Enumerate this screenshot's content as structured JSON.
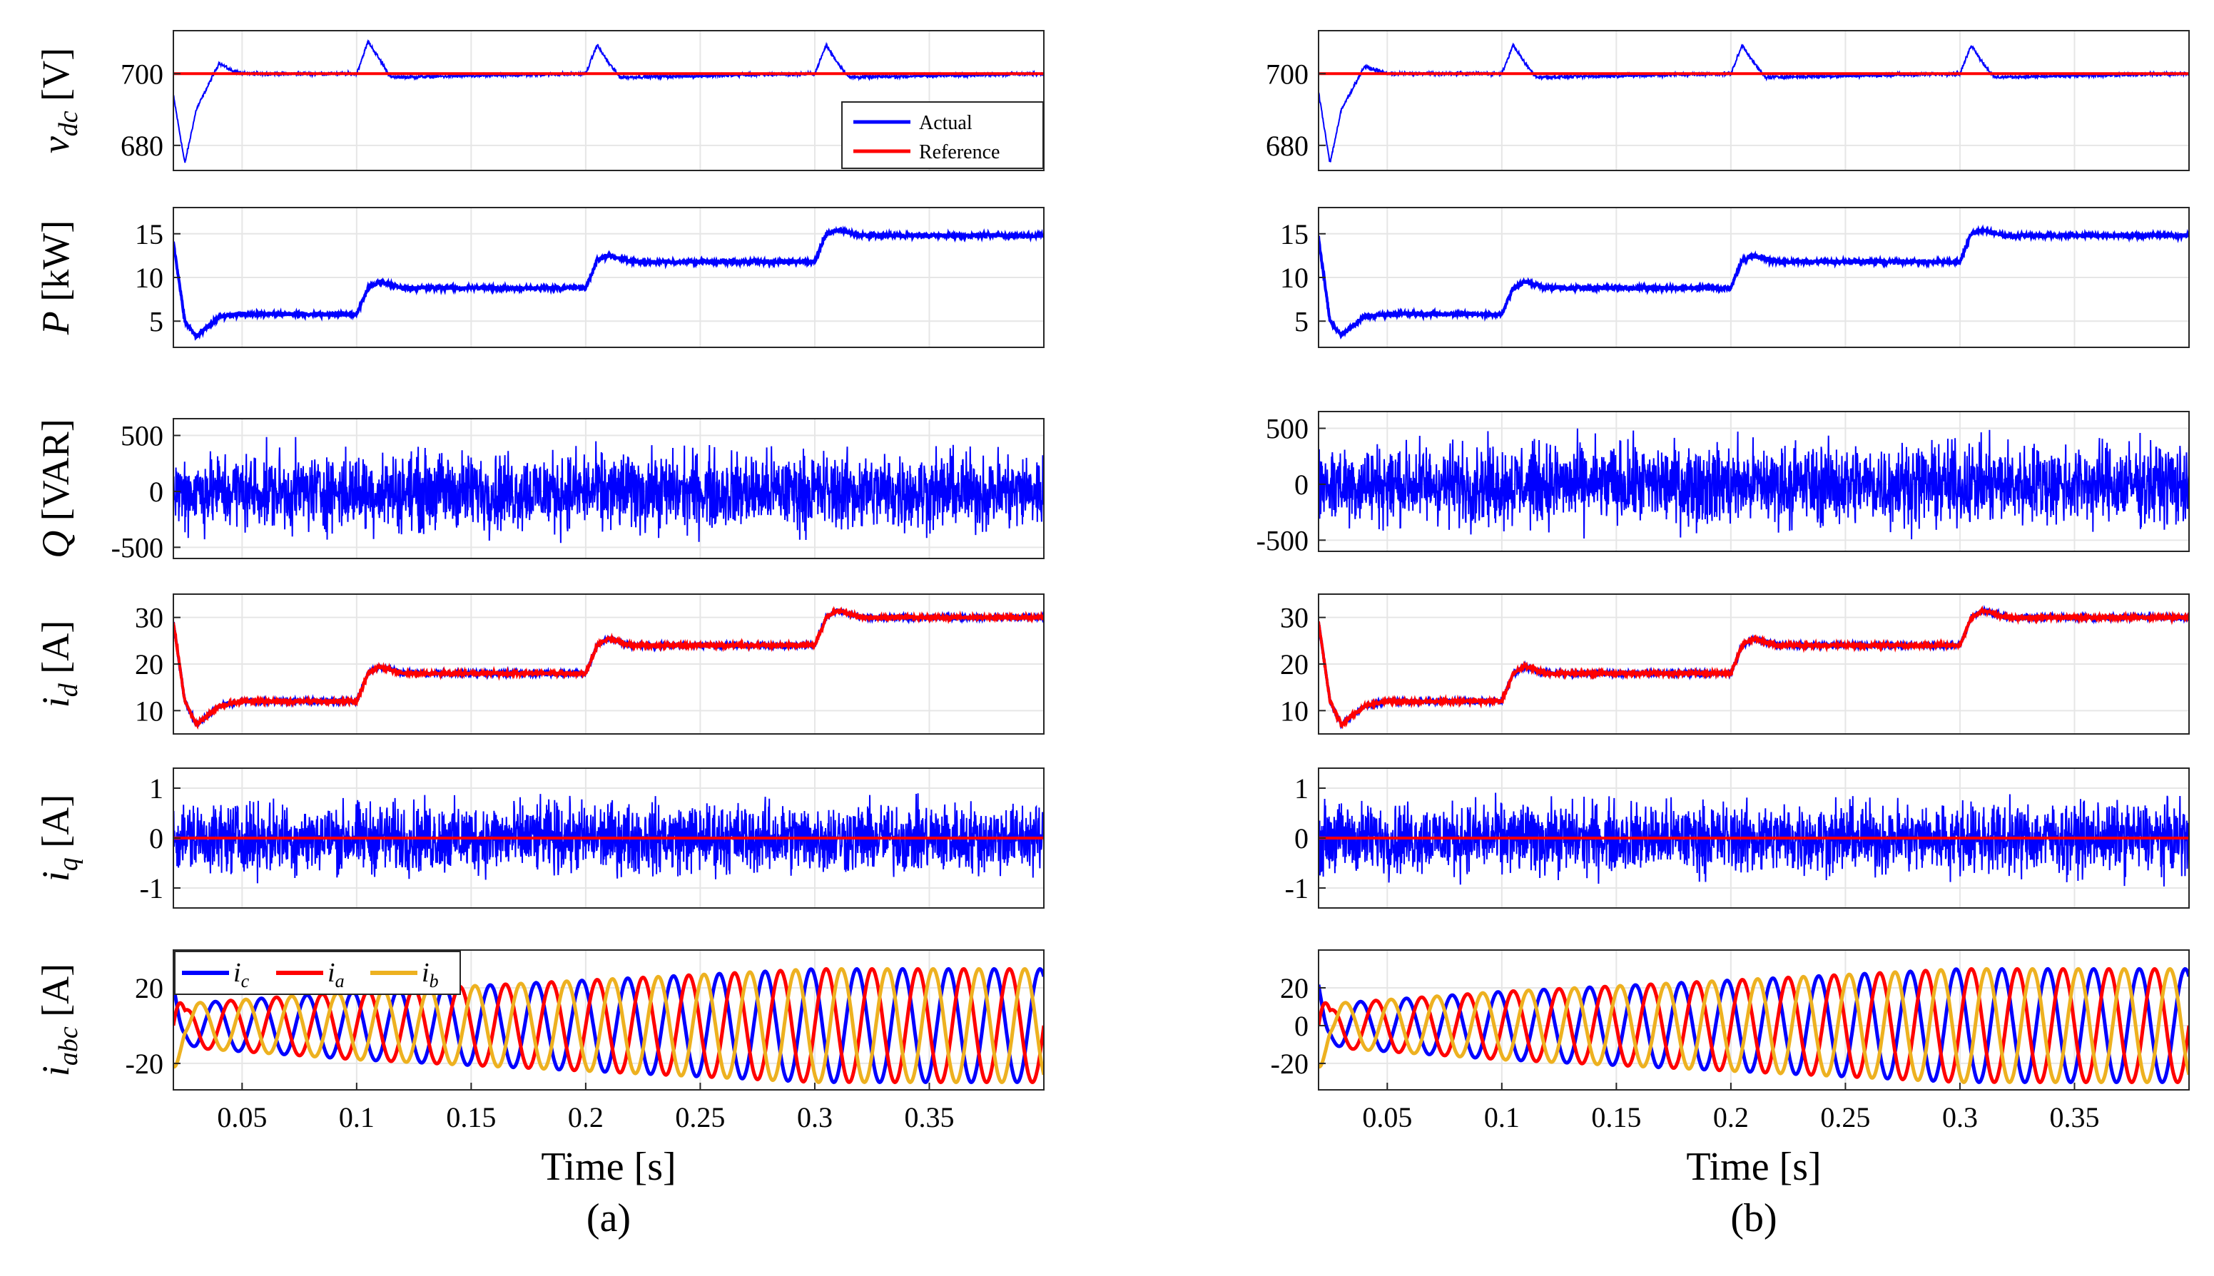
{
  "figure": {
    "xlabel": "Time [s]",
    "panel_labels": [
      "(a)",
      "(b)"
    ]
  },
  "chart_data": [
    {
      "panel": "(a)",
      "type": "line",
      "xlabel": "",
      "ylabel": "v_dc [V]",
      "xlim": [
        0.02,
        0.4
      ],
      "ylim": [
        673,
        712
      ],
      "yticks": [
        680,
        700
      ],
      "grid": true,
      "legend": [
        "Actual",
        "Reference"
      ],
      "legend_position": "bottom-right",
      "series": [
        {
          "name": "Actual",
          "color": "#0000ff",
          "x": [
            0.02,
            0.025,
            0.03,
            0.04,
            0.045,
            0.05,
            0.1,
            0.105,
            0.11,
            0.115,
            0.2,
            0.205,
            0.21,
            0.215,
            0.3,
            0.305,
            0.31,
            0.315,
            0.398
          ],
          "y": [
            694,
            675,
            690,
            703,
            701,
            700,
            700,
            709,
            704,
            699,
            700,
            708,
            703,
            699,
            700,
            708,
            703,
            699,
            700
          ],
          "noise": 0.6
        },
        {
          "name": "Reference",
          "color": "#ff0000",
          "x": [
            0.02,
            0.398
          ],
          "y": [
            700,
            700
          ]
        }
      ]
    },
    {
      "panel": "(a)",
      "type": "line",
      "xlabel": "",
      "ylabel": "P [kW]",
      "xlim": [
        0.02,
        0.4
      ],
      "ylim": [
        2,
        18
      ],
      "yticks": [
        5,
        10,
        15
      ],
      "grid": true,
      "series": [
        {
          "name": "Actual",
          "color": "#0000ff",
          "x": [
            0.02,
            0.025,
            0.03,
            0.04,
            0.05,
            0.1,
            0.105,
            0.11,
            0.12,
            0.2,
            0.205,
            0.21,
            0.22,
            0.3,
            0.305,
            0.31,
            0.32,
            0.398
          ],
          "y": [
            14,
            5,
            3.2,
            5.5,
            5.8,
            5.8,
            8.8,
            9.5,
            8.8,
            8.8,
            12,
            12.5,
            11.8,
            11.8,
            15,
            15.4,
            14.8,
            14.8
          ],
          "noise": 0.3
        }
      ]
    },
    {
      "panel": "(a)",
      "type": "line",
      "xlabel": "",
      "ylabel": "Q [VAR]",
      "xlim": [
        0.02,
        0.4
      ],
      "ylim": [
        -600,
        650
      ],
      "yticks": [
        -500,
        0,
        500
      ],
      "grid": true,
      "series": [
        {
          "name": "Actual",
          "color": "#0000ff",
          "x": [
            0.02,
            0.398
          ],
          "y": [
            0,
            0
          ],
          "noise": 420
        }
      ]
    },
    {
      "panel": "(a)",
      "type": "line",
      "xlabel": "",
      "ylabel": "i_d [A]",
      "xlim": [
        0.02,
        0.4
      ],
      "ylim": [
        5,
        35
      ],
      "yticks": [
        10,
        20,
        30
      ],
      "grid": true,
      "series": [
        {
          "name": "Actual",
          "color": "#0000ff",
          "x": [
            0.02,
            0.025,
            0.03,
            0.04,
            0.05,
            0.1,
            0.105,
            0.11,
            0.12,
            0.2,
            0.205,
            0.21,
            0.22,
            0.3,
            0.305,
            0.31,
            0.32,
            0.398
          ],
          "y": [
            29,
            12,
            7,
            11,
            12,
            12,
            18,
            19.5,
            18,
            18,
            24,
            25.5,
            24,
            24,
            30,
            31.5,
            30,
            30
          ],
          "noise": 0.4
        },
        {
          "name": "Reference",
          "color": "#ff0000",
          "x": [
            0.02,
            0.025,
            0.03,
            0.04,
            0.05,
            0.1,
            0.105,
            0.11,
            0.12,
            0.2,
            0.205,
            0.21,
            0.22,
            0.3,
            0.305,
            0.31,
            0.32,
            0.398
          ],
          "y": [
            29,
            12,
            7,
            11,
            12,
            12,
            18,
            19.5,
            18,
            18,
            24,
            25.5,
            24,
            24,
            30,
            31.5,
            30,
            30
          ],
          "noise": 0.5
        }
      ]
    },
    {
      "panel": "(a)",
      "type": "line",
      "xlabel": "",
      "ylabel": "i_q [A]",
      "xlim": [
        0.02,
        0.4
      ],
      "ylim": [
        -1.4,
        1.4
      ],
      "yticks": [
        -1,
        0,
        1
      ],
      "grid": true,
      "series": [
        {
          "name": "Actual",
          "color": "#0000ff",
          "x": [
            0.02,
            0.398
          ],
          "y": [
            0,
            0
          ],
          "noise": 0.85
        },
        {
          "name": "Reference",
          "color": "#ff0000",
          "x": [
            0.02,
            0.398
          ],
          "y": [
            0,
            0
          ]
        }
      ]
    },
    {
      "panel": "(a)",
      "type": "line",
      "xlabel": "Time [s]",
      "ylabel": "i_abc [A]",
      "xlim": [
        0.02,
        0.4
      ],
      "ylim": [
        -34,
        40
      ],
      "yticks": [
        -20,
        20
      ],
      "grid": true,
      "xticks": [
        0.05,
        0.1,
        0.15,
        0.2,
        0.25,
        0.3,
        0.35
      ],
      "legend": [
        "i_c",
        "i_a",
        "i_b"
      ],
      "legend_position": "top-left",
      "frequency_hz": 50,
      "amplitude_steps": {
        "t": [
          0.02,
          0.025,
          0.03,
          0.1,
          0.2,
          0.3,
          0.398
        ],
        "amp": [
          25,
          8,
          12,
          18,
          24,
          30,
          30
        ]
      },
      "series": [
        {
          "name": "i_c",
          "color": "#0000ff",
          "phase_deg": 120
        },
        {
          "name": "i_a",
          "color": "#ff0000",
          "phase_deg": 0
        },
        {
          "name": "i_b",
          "color": "#edb120",
          "phase_deg": -120
        }
      ]
    },
    {
      "panel": "(b)",
      "type": "line",
      "xlabel": "",
      "ylabel": "",
      "xlim": [
        0.02,
        0.4
      ],
      "ylim": [
        673,
        712
      ],
      "yticks": [
        680,
        700
      ],
      "grid": true,
      "series": [
        {
          "name": "Actual",
          "color": "#0000ff",
          "x": [
            0.02,
            0.025,
            0.03,
            0.04,
            0.045,
            0.05,
            0.1,
            0.105,
            0.11,
            0.115,
            0.2,
            0.205,
            0.21,
            0.215,
            0.3,
            0.305,
            0.31,
            0.315,
            0.398
          ],
          "y": [
            695,
            675,
            690,
            702,
            701,
            700,
            700,
            708,
            703,
            699,
            700,
            708,
            703,
            699,
            700,
            708,
            703,
            699,
            700
          ],
          "noise": 0.6
        },
        {
          "name": "Reference",
          "color": "#ff0000",
          "x": [
            0.02,
            0.398
          ],
          "y": [
            700,
            700
          ]
        }
      ]
    },
    {
      "panel": "(b)",
      "type": "line",
      "xlabel": "",
      "ylabel": "",
      "xlim": [
        0.02,
        0.4
      ],
      "ylim": [
        2,
        18
      ],
      "yticks": [
        5,
        10,
        15
      ],
      "grid": true,
      "series": [
        {
          "name": "Actual",
          "color": "#0000ff",
          "x": [
            0.02,
            0.025,
            0.03,
            0.04,
            0.05,
            0.1,
            0.105,
            0.11,
            0.12,
            0.2,
            0.205,
            0.21,
            0.22,
            0.3,
            0.305,
            0.31,
            0.32,
            0.398
          ],
          "y": [
            14.5,
            5,
            3.4,
            5.5,
            5.8,
            5.8,
            8.8,
            9.5,
            8.8,
            8.8,
            12,
            12.5,
            11.8,
            11.8,
            15,
            15.4,
            14.8,
            14.8
          ],
          "noise": 0.3
        }
      ]
    },
    {
      "panel": "(b)",
      "type": "line",
      "xlabel": "",
      "ylabel": "",
      "xlim": [
        0.02,
        0.4
      ],
      "ylim": [
        -600,
        650
      ],
      "yticks": [
        -500,
        0,
        500
      ],
      "grid": true,
      "series": [
        {
          "name": "Actual",
          "color": "#0000ff",
          "x": [
            0.02,
            0.398
          ],
          "y": [
            0,
            0
          ],
          "noise": 440
        }
      ]
    },
    {
      "panel": "(b)",
      "type": "line",
      "xlabel": "",
      "ylabel": "",
      "xlim": [
        0.02,
        0.4
      ],
      "ylim": [
        5,
        35
      ],
      "yticks": [
        10,
        20,
        30
      ],
      "grid": true,
      "series": [
        {
          "name": "Actual",
          "color": "#0000ff",
          "x": [
            0.02,
            0.025,
            0.03,
            0.04,
            0.05,
            0.1,
            0.105,
            0.11,
            0.12,
            0.2,
            0.205,
            0.21,
            0.22,
            0.3,
            0.305,
            0.31,
            0.32,
            0.398
          ],
          "y": [
            29,
            12,
            7,
            11,
            12,
            12,
            18,
            19.5,
            18,
            18,
            24,
            25.5,
            24,
            24,
            30,
            31.5,
            30,
            30
          ],
          "noise": 0.4
        },
        {
          "name": "Reference",
          "color": "#ff0000",
          "x": [
            0.02,
            0.025,
            0.03,
            0.04,
            0.05,
            0.1,
            0.105,
            0.11,
            0.12,
            0.2,
            0.205,
            0.21,
            0.22,
            0.3,
            0.305,
            0.31,
            0.32,
            0.398
          ],
          "y": [
            29,
            12,
            7,
            11,
            12,
            12,
            18,
            19.5,
            18,
            18,
            24,
            25.5,
            24,
            24,
            30,
            31.5,
            30,
            30
          ],
          "noise": 0.5
        }
      ]
    },
    {
      "panel": "(b)",
      "type": "line",
      "xlabel": "",
      "ylabel": "",
      "xlim": [
        0.02,
        0.4
      ],
      "ylim": [
        -1.4,
        1.4
      ],
      "yticks": [
        -1,
        0,
        1
      ],
      "grid": true,
      "series": [
        {
          "name": "Actual",
          "color": "#0000ff",
          "x": [
            0.02,
            0.398
          ],
          "y": [
            0,
            0
          ],
          "noise": 0.85
        },
        {
          "name": "Reference",
          "color": "#ff0000",
          "x": [
            0.02,
            0.398
          ],
          "y": [
            0,
            0
          ]
        }
      ]
    },
    {
      "panel": "(b)",
      "type": "line",
      "xlabel": "Time [s]",
      "ylabel": "",
      "xlim": [
        0.02,
        0.4
      ],
      "ylim": [
        -34,
        40
      ],
      "yticks": [
        -20,
        0,
        20
      ],
      "grid": true,
      "xticks": [
        0.05,
        0.1,
        0.15,
        0.2,
        0.25,
        0.3,
        0.35
      ],
      "frequency_hz": 50,
      "amplitude_steps": {
        "t": [
          0.02,
          0.025,
          0.03,
          0.1,
          0.2,
          0.3,
          0.398
        ],
        "amp": [
          25,
          8,
          12,
          18,
          24,
          30,
          30
        ]
      },
      "series": [
        {
          "name": "i_c",
          "color": "#0000ff",
          "phase_deg": 120
        },
        {
          "name": "i_a",
          "color": "#ff0000",
          "phase_deg": 0
        },
        {
          "name": "i_b",
          "color": "#edb120",
          "phase_deg": -120
        }
      ]
    }
  ]
}
